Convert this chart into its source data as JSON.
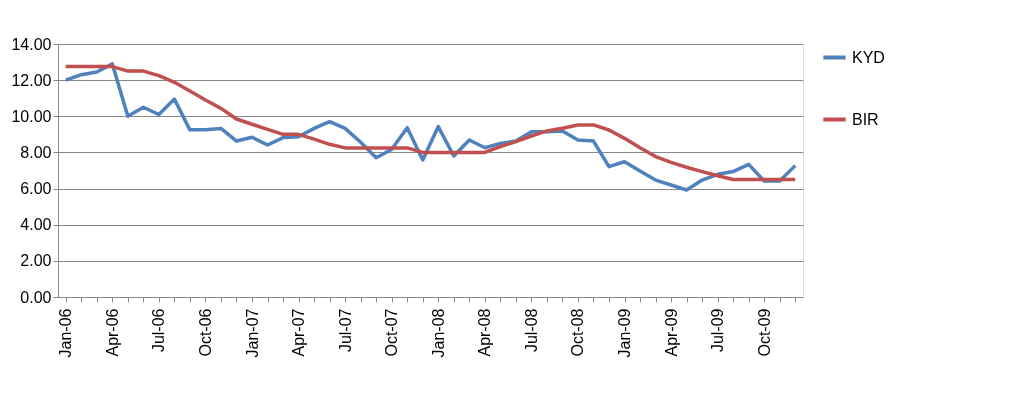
{
  "chart_data": {
    "type": "line",
    "categories": [
      "Jan-06",
      null,
      null,
      "Apr-06",
      null,
      null,
      "Jul-06",
      null,
      null,
      "Oct-06",
      null,
      null,
      "Jan-07",
      null,
      null,
      "Apr-07",
      null,
      null,
      "Jul-07",
      null,
      null,
      "Oct-07",
      null,
      null,
      "Jan-08",
      null,
      null,
      "Apr-08",
      null,
      null,
      "Jul-08",
      null,
      null,
      "Oct-08",
      null,
      null,
      "Jan-09",
      null,
      null,
      "Apr-09",
      null,
      null,
      "Jul-09",
      null,
      null,
      "Oct-09",
      null,
      null
    ],
    "series": [
      {
        "name": "KYD",
        "color": "#4f81bd",
        "values": [
          12.0,
          12.3,
          12.45,
          12.9,
          10.0,
          10.5,
          10.1,
          10.95,
          9.25,
          9.25,
          9.33,
          8.63,
          8.84,
          8.41,
          8.82,
          8.87,
          9.33,
          9.7,
          9.33,
          8.56,
          7.71,
          8.17,
          9.37,
          7.58,
          9.43,
          7.8,
          8.69,
          8.26,
          8.5,
          8.63,
          9.15,
          9.15,
          9.19,
          8.69,
          8.63,
          7.21,
          7.49,
          6.97,
          6.47,
          6.2,
          5.92,
          6.47,
          6.79,
          6.94,
          7.34,
          6.42,
          6.42,
          7.27
        ]
      },
      {
        "name": "BIR",
        "color": "#c0504d",
        "values": [
          12.75,
          12.75,
          12.75,
          12.75,
          12.5,
          12.5,
          12.25,
          11.88,
          11.4,
          10.9,
          10.44,
          9.85,
          9.56,
          9.28,
          9.0,
          9.0,
          8.74,
          8.45,
          8.25,
          8.25,
          8.25,
          8.25,
          8.25,
          8.0,
          8.0,
          8.0,
          8.0,
          8.0,
          8.32,
          8.6,
          8.91,
          9.19,
          9.34,
          9.52,
          9.52,
          9.24,
          8.78,
          8.26,
          7.77,
          7.45,
          7.18,
          6.94,
          6.71,
          6.5,
          6.5,
          6.5,
          6.5,
          6.5
        ]
      }
    ],
    "ylim": [
      0,
      14
    ],
    "yticks": [
      {
        "value": 0,
        "label": "0.00"
      },
      {
        "value": 2,
        "label": "2.00"
      },
      {
        "value": 4,
        "label": "4.00"
      },
      {
        "value": 6,
        "label": "6.00"
      },
      {
        "value": 8,
        "label": "8.00"
      },
      {
        "value": 10,
        "label": "10.00"
      },
      {
        "value": 12,
        "label": "12.00"
      },
      {
        "value": 14,
        "label": "14.00"
      }
    ],
    "grid": "y",
    "legend": "right",
    "marker": "none",
    "line_style": "solid"
  }
}
